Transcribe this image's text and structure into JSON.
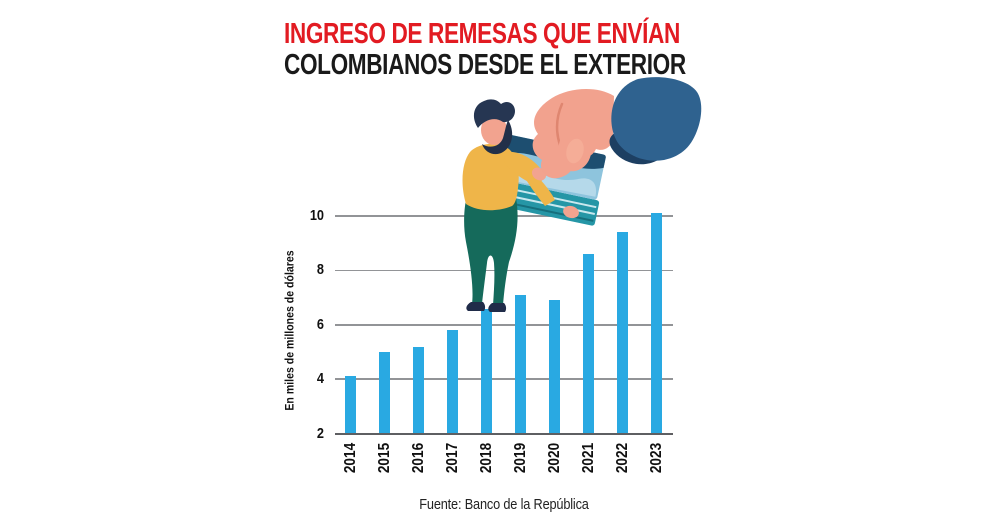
{
  "page": {
    "background": "#ffffff"
  },
  "header": {
    "title_line1": "INGRESO DE REMESAS QUE ENVÍAN",
    "title_line2": "COLOMBIANOS DESDE EL EXTERIOR",
    "title_line1_color": "#e21b22",
    "title_line2_color": "#1a1a1a"
  },
  "chart_data": {
    "type": "bar",
    "title": "Ingreso de remesas que envían colombianos desde el exterior",
    "categories": [
      "2014",
      "2015",
      "2016",
      "2017",
      "2018",
      "2019",
      "2020",
      "2021",
      "2022",
      "2023"
    ],
    "values": [
      4.1,
      5.0,
      5.2,
      5.8,
      6.6,
      7.1,
      6.9,
      8.6,
      9.4,
      10.1
    ],
    "ylabel": "En miles de millones de dólares",
    "xlabel": "",
    "yticks": [
      2,
      4,
      6,
      8,
      10
    ],
    "ylim": [
      2,
      10.3
    ],
    "grid": "horizontal",
    "legend_position": "none",
    "bar_color": "#29a9e2",
    "grid_color": "#929497",
    "baseline_color": "#5e5f62",
    "source": "Fuente: Banco de la República"
  },
  "illustration": {
    "name": "hand-giving-money-illustration",
    "colors": {
      "skin": "#f2a28e",
      "skin_highlight": "#f5ad97",
      "crease": "#df8670",
      "hair": "#263652",
      "beard": "#223049",
      "sweater": "#efb549",
      "pants": "#156a5b",
      "shoes": "#202c49",
      "sleeve": "#2f628f",
      "sleeve_shadow": "#1d3f62",
      "bill_light": "#8ec4dd",
      "bill_navy": "#1d4e70",
      "bill_wave": "#b5d9ea",
      "stack_side": "#2596a6",
      "stack_stripe": "#c9e8ee",
      "stack_edge_dark": "#166f7d"
    }
  }
}
